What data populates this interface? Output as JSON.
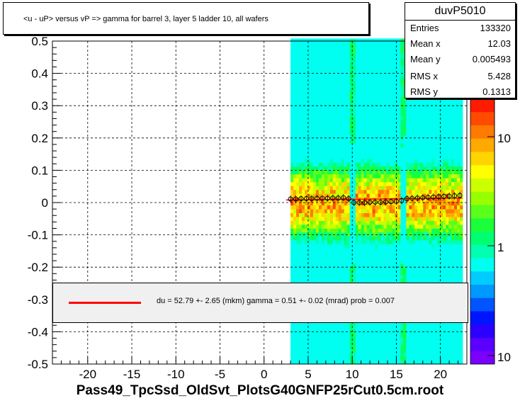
{
  "chart_data": {
    "type": "heatmap",
    "title": "<u - uP>       versus   vP =>  gamma for barrel 3, layer 5 ladder 10, all wafers",
    "xlim": [
      -24,
      23
    ],
    "ylim": [
      -0.5,
      0.5
    ],
    "x_ticks": [
      -20,
      -15,
      -10,
      -5,
      0,
      5,
      10,
      15,
      20
    ],
    "x_tick_labels": [
      "-20",
      "-15",
      "-10",
      "-5",
      "0",
      "5",
      "10",
      "15",
      "20"
    ],
    "y_ticks": [
      0.5,
      0.4,
      0.3,
      0.2,
      0.1,
      0,
      -0.1,
      -0.2,
      -0.3,
      -0.4,
      -0.5
    ],
    "y_tick_labels": [
      "0.5",
      "0.4",
      "0.3",
      "0.2",
      "0.1",
      "0",
      "-0.1",
      "-0.2",
      "-0.3",
      "-0.4",
      "-0.5"
    ],
    "grid": true,
    "z_scale": "log",
    "z_tick_labels": [
      "10",
      "1",
      "10"
    ],
    "occupied_x_range": [
      3,
      22
    ],
    "wafer_gaps_x": [
      9.8,
      15.6
    ],
    "profile_points": [
      {
        "x": 3.0,
        "y": 0.011
      },
      {
        "x": 3.6,
        "y": 0.011
      },
      {
        "x": 4.2,
        "y": 0.012
      },
      {
        "x": 4.8,
        "y": 0.012
      },
      {
        "x": 5.4,
        "y": 0.012
      },
      {
        "x": 6.0,
        "y": 0.013
      },
      {
        "x": 6.6,
        "y": 0.013
      },
      {
        "x": 7.2,
        "y": 0.013
      },
      {
        "x": 7.8,
        "y": 0.014
      },
      {
        "x": 8.4,
        "y": 0.014
      },
      {
        "x": 9.0,
        "y": 0.015
      },
      {
        "x": 9.6,
        "y": 0.012
      },
      {
        "x": 10.2,
        "y": 0.0
      },
      {
        "x": 10.8,
        "y": 0.0
      },
      {
        "x": 11.4,
        "y": 0.0
      },
      {
        "x": 12.0,
        "y": 0.001
      },
      {
        "x": 12.6,
        "y": 0.001
      },
      {
        "x": 13.2,
        "y": 0.001
      },
      {
        "x": 13.8,
        "y": 0.002
      },
      {
        "x": 14.4,
        "y": 0.003
      },
      {
        "x": 15.0,
        "y": 0.004
      },
      {
        "x": 15.6,
        "y": 0.006
      },
      {
        "x": 16.2,
        "y": 0.012
      },
      {
        "x": 16.8,
        "y": 0.013
      },
      {
        "x": 17.4,
        "y": 0.014
      },
      {
        "x": 18.0,
        "y": 0.015
      },
      {
        "x": 18.6,
        "y": 0.016
      },
      {
        "x": 19.2,
        "y": 0.017
      },
      {
        "x": 19.8,
        "y": 0.018
      },
      {
        "x": 20.4,
        "y": 0.019
      },
      {
        "x": 21.0,
        "y": 0.02
      },
      {
        "x": 21.6,
        "y": 0.021
      },
      {
        "x": 22.2,
        "y": 0.022
      }
    ],
    "fit_line": {
      "x0": 2.5,
      "y0": 0.008,
      "x1": 22.5,
      "y1": 0.014,
      "color": "#ff0000"
    }
  },
  "stats": {
    "name": "duvP5010",
    "rows": [
      {
        "key": "Entries",
        "value": "133320"
      },
      {
        "key": "Mean x",
        "value": "12.03"
      },
      {
        "key": "Mean y",
        "value": "0.005493"
      },
      {
        "key": "RMS x",
        "value": "5.428"
      },
      {
        "key": "RMS y",
        "value": "0.1313"
      }
    ]
  },
  "legend": {
    "text": "du =   52.79 +-  2.65 (mkm) gamma =    0.51 +-  0.02 (mrad) prob = 0.007",
    "color": "#ff0000"
  },
  "footer": "Pass49_TpcSsd_OldSvt_PlotsG40GNFP25rCut0.5cm.root"
}
